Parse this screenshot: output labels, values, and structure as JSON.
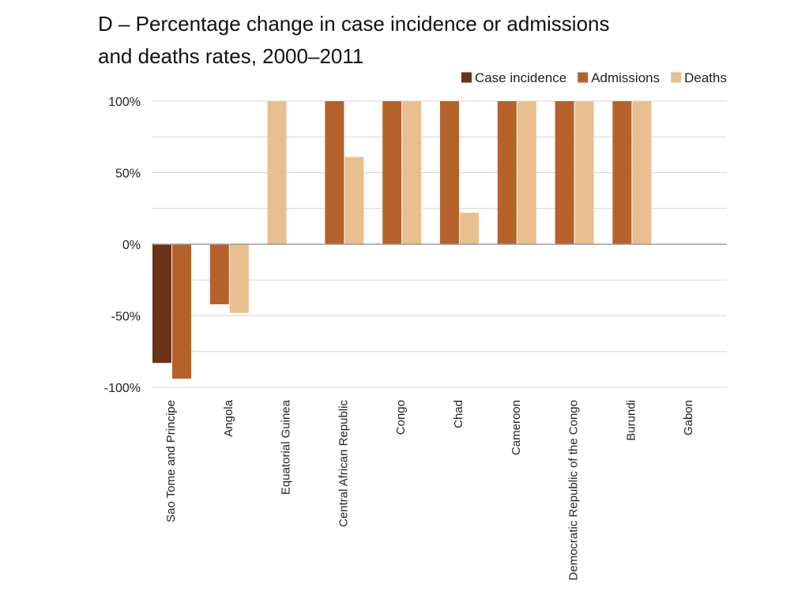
{
  "chart_data": {
    "type": "bar",
    "title": "D – Percentage change in case incidence or admissions",
    "subtitle": "and deaths rates, 2000–2011",
    "xlabel": "",
    "ylabel": "",
    "ylim": [
      -100,
      100
    ],
    "yticks": [
      100,
      50,
      0,
      -50,
      -100
    ],
    "ytick_labels": [
      "100%",
      "50%",
      "0%",
      "-50%",
      "-100%"
    ],
    "grid": true,
    "legend_position": "top-right",
    "categories": [
      "Sao Tome and Principe",
      "Angola",
      "Equatorial Guinea",
      "Central African Republic",
      "Congo",
      "Chad",
      "Cameroon",
      "Democratic Republic of the Congo",
      "Burundi",
      "Gabon"
    ],
    "series": [
      {
        "name": "Case incidence",
        "color": "#6b3217",
        "values": [
          -83,
          null,
          null,
          null,
          null,
          null,
          null,
          null,
          null,
          null
        ]
      },
      {
        "name": "Admissions",
        "color": "#b5622a",
        "values": [
          -94,
          -42,
          null,
          100,
          100,
          100,
          100,
          100,
          100,
          null
        ]
      },
      {
        "name": "Deaths",
        "color": "#e9bf90",
        "values": [
          null,
          -48,
          100,
          61,
          100,
          22,
          100,
          100,
          100,
          null
        ]
      }
    ]
  }
}
